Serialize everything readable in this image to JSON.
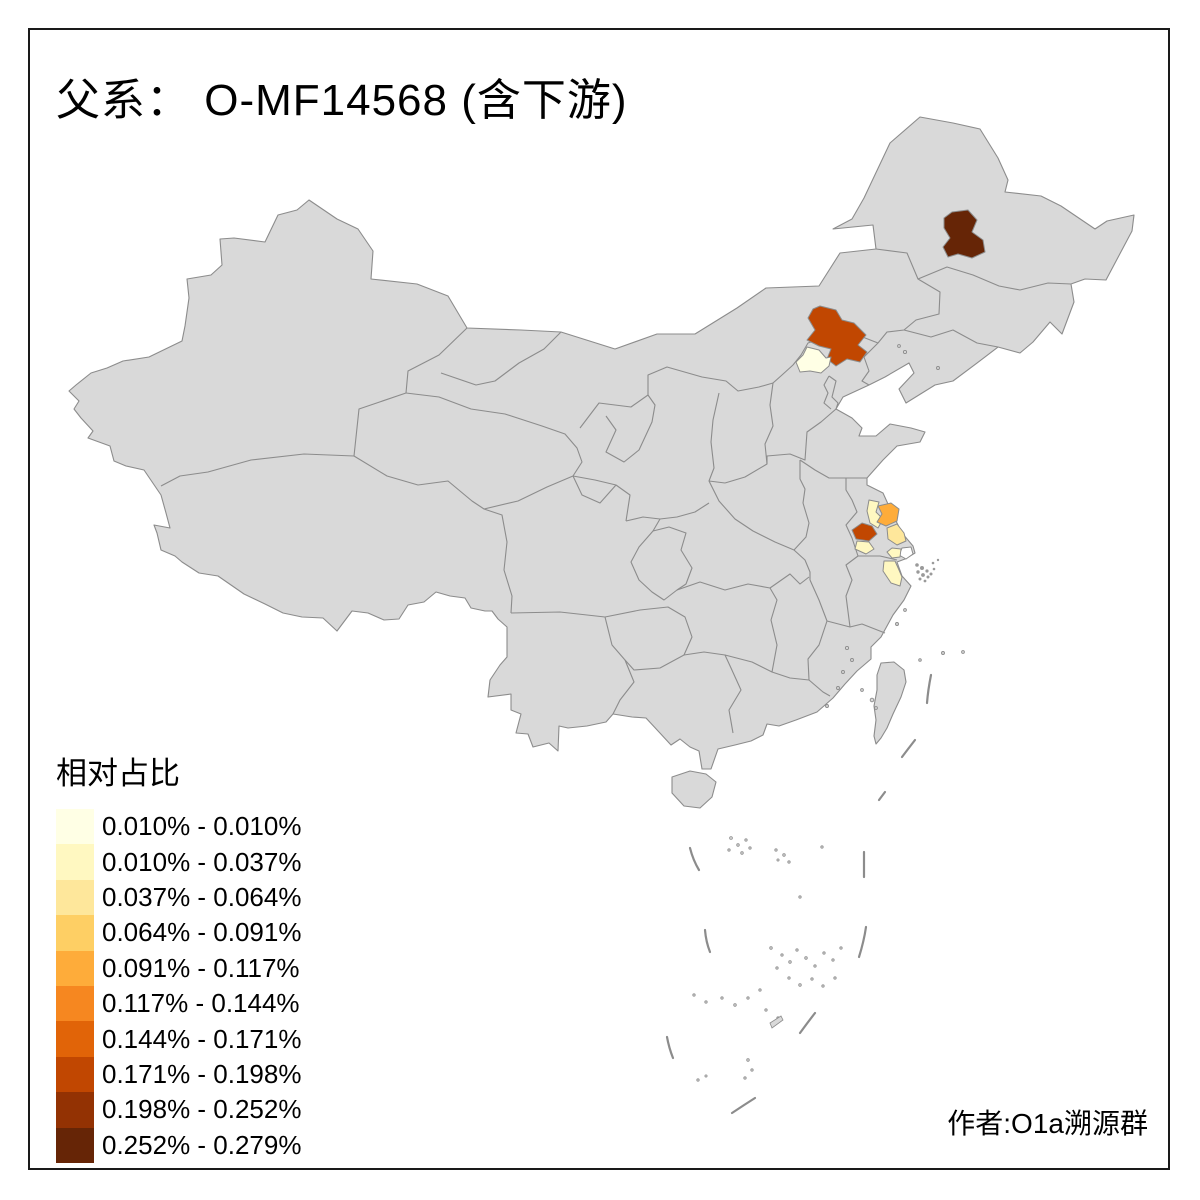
{
  "title": "父系： O-MF14568 (含下游)",
  "attribution": "作者:O1a溯源群",
  "legend": {
    "title": "相对占比",
    "items": [
      {
        "label": "0.010% - 0.010%",
        "color": "#FFFFE5"
      },
      {
        "label": "0.010% - 0.037%",
        "color": "#FFF8C1"
      },
      {
        "label": "0.037% - 0.064%",
        "color": "#FEE79B"
      },
      {
        "label": "0.064% - 0.091%",
        "color": "#FECF64"
      },
      {
        "label": "0.091% - 0.117%",
        "color": "#FEAC3A"
      },
      {
        "label": "0.117% - 0.144%",
        "color": "#F68720"
      },
      {
        "label": "0.144% - 0.171%",
        "color": "#E16408"
      },
      {
        "label": "0.171% - 0.198%",
        "color": "#C14701"
      },
      {
        "label": "0.198% - 0.252%",
        "color": "#933203"
      },
      {
        "label": "0.252% - 0.279%",
        "color": "#662506"
      }
    ]
  },
  "map": {
    "background": "#FFFFFF",
    "frame_color": "#1a1a1a",
    "base_fill": "#D9D9D9",
    "border_color": "#8C8C8C",
    "regions": [
      {
        "id": "r1",
        "bin": 9
      },
      {
        "id": "r2",
        "bin": 7
      },
      {
        "id": "r3",
        "bin": 0
      },
      {
        "id": "r4",
        "bin": 7
      },
      {
        "id": "r5",
        "bin": 1
      },
      {
        "id": "r6",
        "bin": 1
      },
      {
        "id": "r7",
        "bin": 4
      },
      {
        "id": "r8",
        "bin": 2
      },
      {
        "id": "r9",
        "fill": "#FFFFFF"
      },
      {
        "id": "r10",
        "bin": 1
      },
      {
        "id": "r11",
        "bin": 1
      }
    ]
  },
  "chart_data": {
    "type": "choropleth_map",
    "title": "父系： O-MF14568 (含下游)",
    "legend_title": "相对占比",
    "bins": [
      "0.010% - 0.010%",
      "0.010% - 0.037%",
      "0.037% - 0.064%",
      "0.064% - 0.091%",
      "0.091% - 0.117%",
      "0.117% - 0.144%",
      "0.144% - 0.171%",
      "0.171% - 0.198%",
      "0.198% - 0.252%",
      "0.252% - 0.279%"
    ],
    "colored_areas": [
      {
        "area": "northeast-prefecture",
        "bin_label": "0.252% - 0.279%"
      },
      {
        "area": "north-hebei-prefecture",
        "bin_label": "0.171% - 0.198%"
      },
      {
        "area": "beijing",
        "bin_label": "0.010% - 0.010%"
      },
      {
        "area": "nanjing-area",
        "bin_label": "0.171% - 0.198%"
      },
      {
        "area": "yangzhou-strip",
        "bin_label": "0.010% - 0.037%"
      },
      {
        "area": "south-of-nanjing",
        "bin_label": "0.010% - 0.037%"
      },
      {
        "area": "taizhou-area",
        "bin_label": "0.091% - 0.117%"
      },
      {
        "area": "nantong-area",
        "bin_label": "0.037% - 0.064%"
      },
      {
        "area": "shanghai",
        "bin_label": "below range (white)"
      },
      {
        "area": "suzhou-area",
        "bin_label": "0.010% - 0.037%"
      },
      {
        "area": "north-zhejiang",
        "bin_label": "0.010% - 0.037%"
      }
    ]
  }
}
